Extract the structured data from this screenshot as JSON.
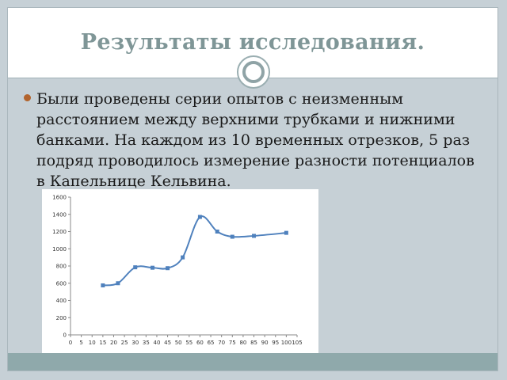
{
  "slide": {
    "title": "Результаты исследования.",
    "bullet_text": "Были проведены серии опытов с неизменным расстоянием между верхними трубками и нижними банками. На каждом из 10 временных отрезков, 5 раз подряд проводилось измерение разности потенциалов в Капельнице Кельвина.",
    "colors": {
      "title": "#7f9697",
      "background": "#c6d0d6",
      "accent_bar": "#8fa9ab",
      "bullet": "#b2642e"
    }
  },
  "chart_data": {
    "type": "line",
    "title": "",
    "xlabel": "",
    "ylabel": "",
    "xlim": [
      0,
      105
    ],
    "ylim": [
      0,
      1600
    ],
    "x_ticks": [
      0,
      5,
      10,
      15,
      20,
      25,
      30,
      35,
      40,
      45,
      50,
      55,
      60,
      65,
      70,
      75,
      80,
      85,
      90,
      95,
      100,
      105
    ],
    "y_ticks": [
      0,
      200,
      400,
      600,
      800,
      1000,
      1200,
      1400,
      1600
    ],
    "grid": false,
    "legend": "none",
    "series": [
      {
        "color": "#4f81bd",
        "x": [
          15,
          22,
          30,
          38,
          45,
          52,
          60,
          68,
          75,
          85,
          100
        ],
        "y": [
          575,
          600,
          785,
          780,
          775,
          900,
          1370,
          1200,
          1140,
          1150,
          1185
        ]
      }
    ]
  }
}
